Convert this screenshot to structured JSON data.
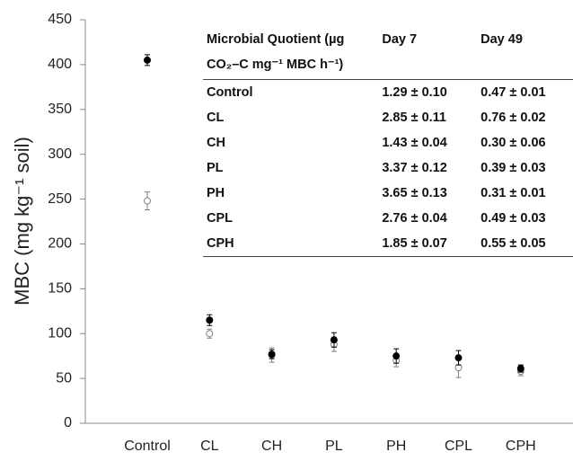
{
  "chart_data": {
    "type": "errorbar",
    "y_label": "MBC (mg kg⁻¹ soil)",
    "categories": [
      "Control",
      "CL",
      "CH",
      "PL",
      "PH",
      "CPL",
      "CPH"
    ],
    "series": [
      {
        "color": "#000000",
        "marker": "filled",
        "values": [
          405,
          115,
          77,
          93,
          75,
          73,
          61
        ],
        "errors": [
          6,
          6,
          5,
          8,
          8,
          8,
          4
        ]
      },
      {
        "color": "#808080",
        "marker": "open",
        "values": [
          248,
          100,
          76,
          88,
          70,
          62,
          58
        ],
        "errors": [
          10,
          5,
          8,
          8,
          7,
          11,
          5
        ]
      }
    ],
    "ylim": [
      0,
      450
    ],
    "yticks": [
      0,
      50,
      100,
      150,
      200,
      250,
      300,
      350,
      400,
      450
    ],
    "grid": false
  },
  "table": {
    "header": [
      "Microbial Quotient (µg CO₂–C mg⁻¹ MBC h⁻¹)",
      "Day 7",
      "Day 49"
    ],
    "rows": [
      [
        "Control",
        "1.29 ± 0.10",
        "0.47 ± 0.01"
      ],
      [
        "CL",
        "2.85 ± 0.11",
        "0.76 ± 0.02"
      ],
      [
        "CH",
        "1.43 ± 0.04",
        "0.30 ± 0.06"
      ],
      [
        "PL",
        "3.37 ± 0.12",
        "0.39 ± 0.03"
      ],
      [
        "PH",
        "3.65 ± 0.13",
        "0.31 ± 0.01"
      ],
      [
        "CPL",
        "2.76 ± 0.04",
        "0.49 ± 0.03"
      ],
      [
        "CPH",
        "1.85 ± 0.07",
        "0.55 ± 0.05"
      ]
    ]
  }
}
